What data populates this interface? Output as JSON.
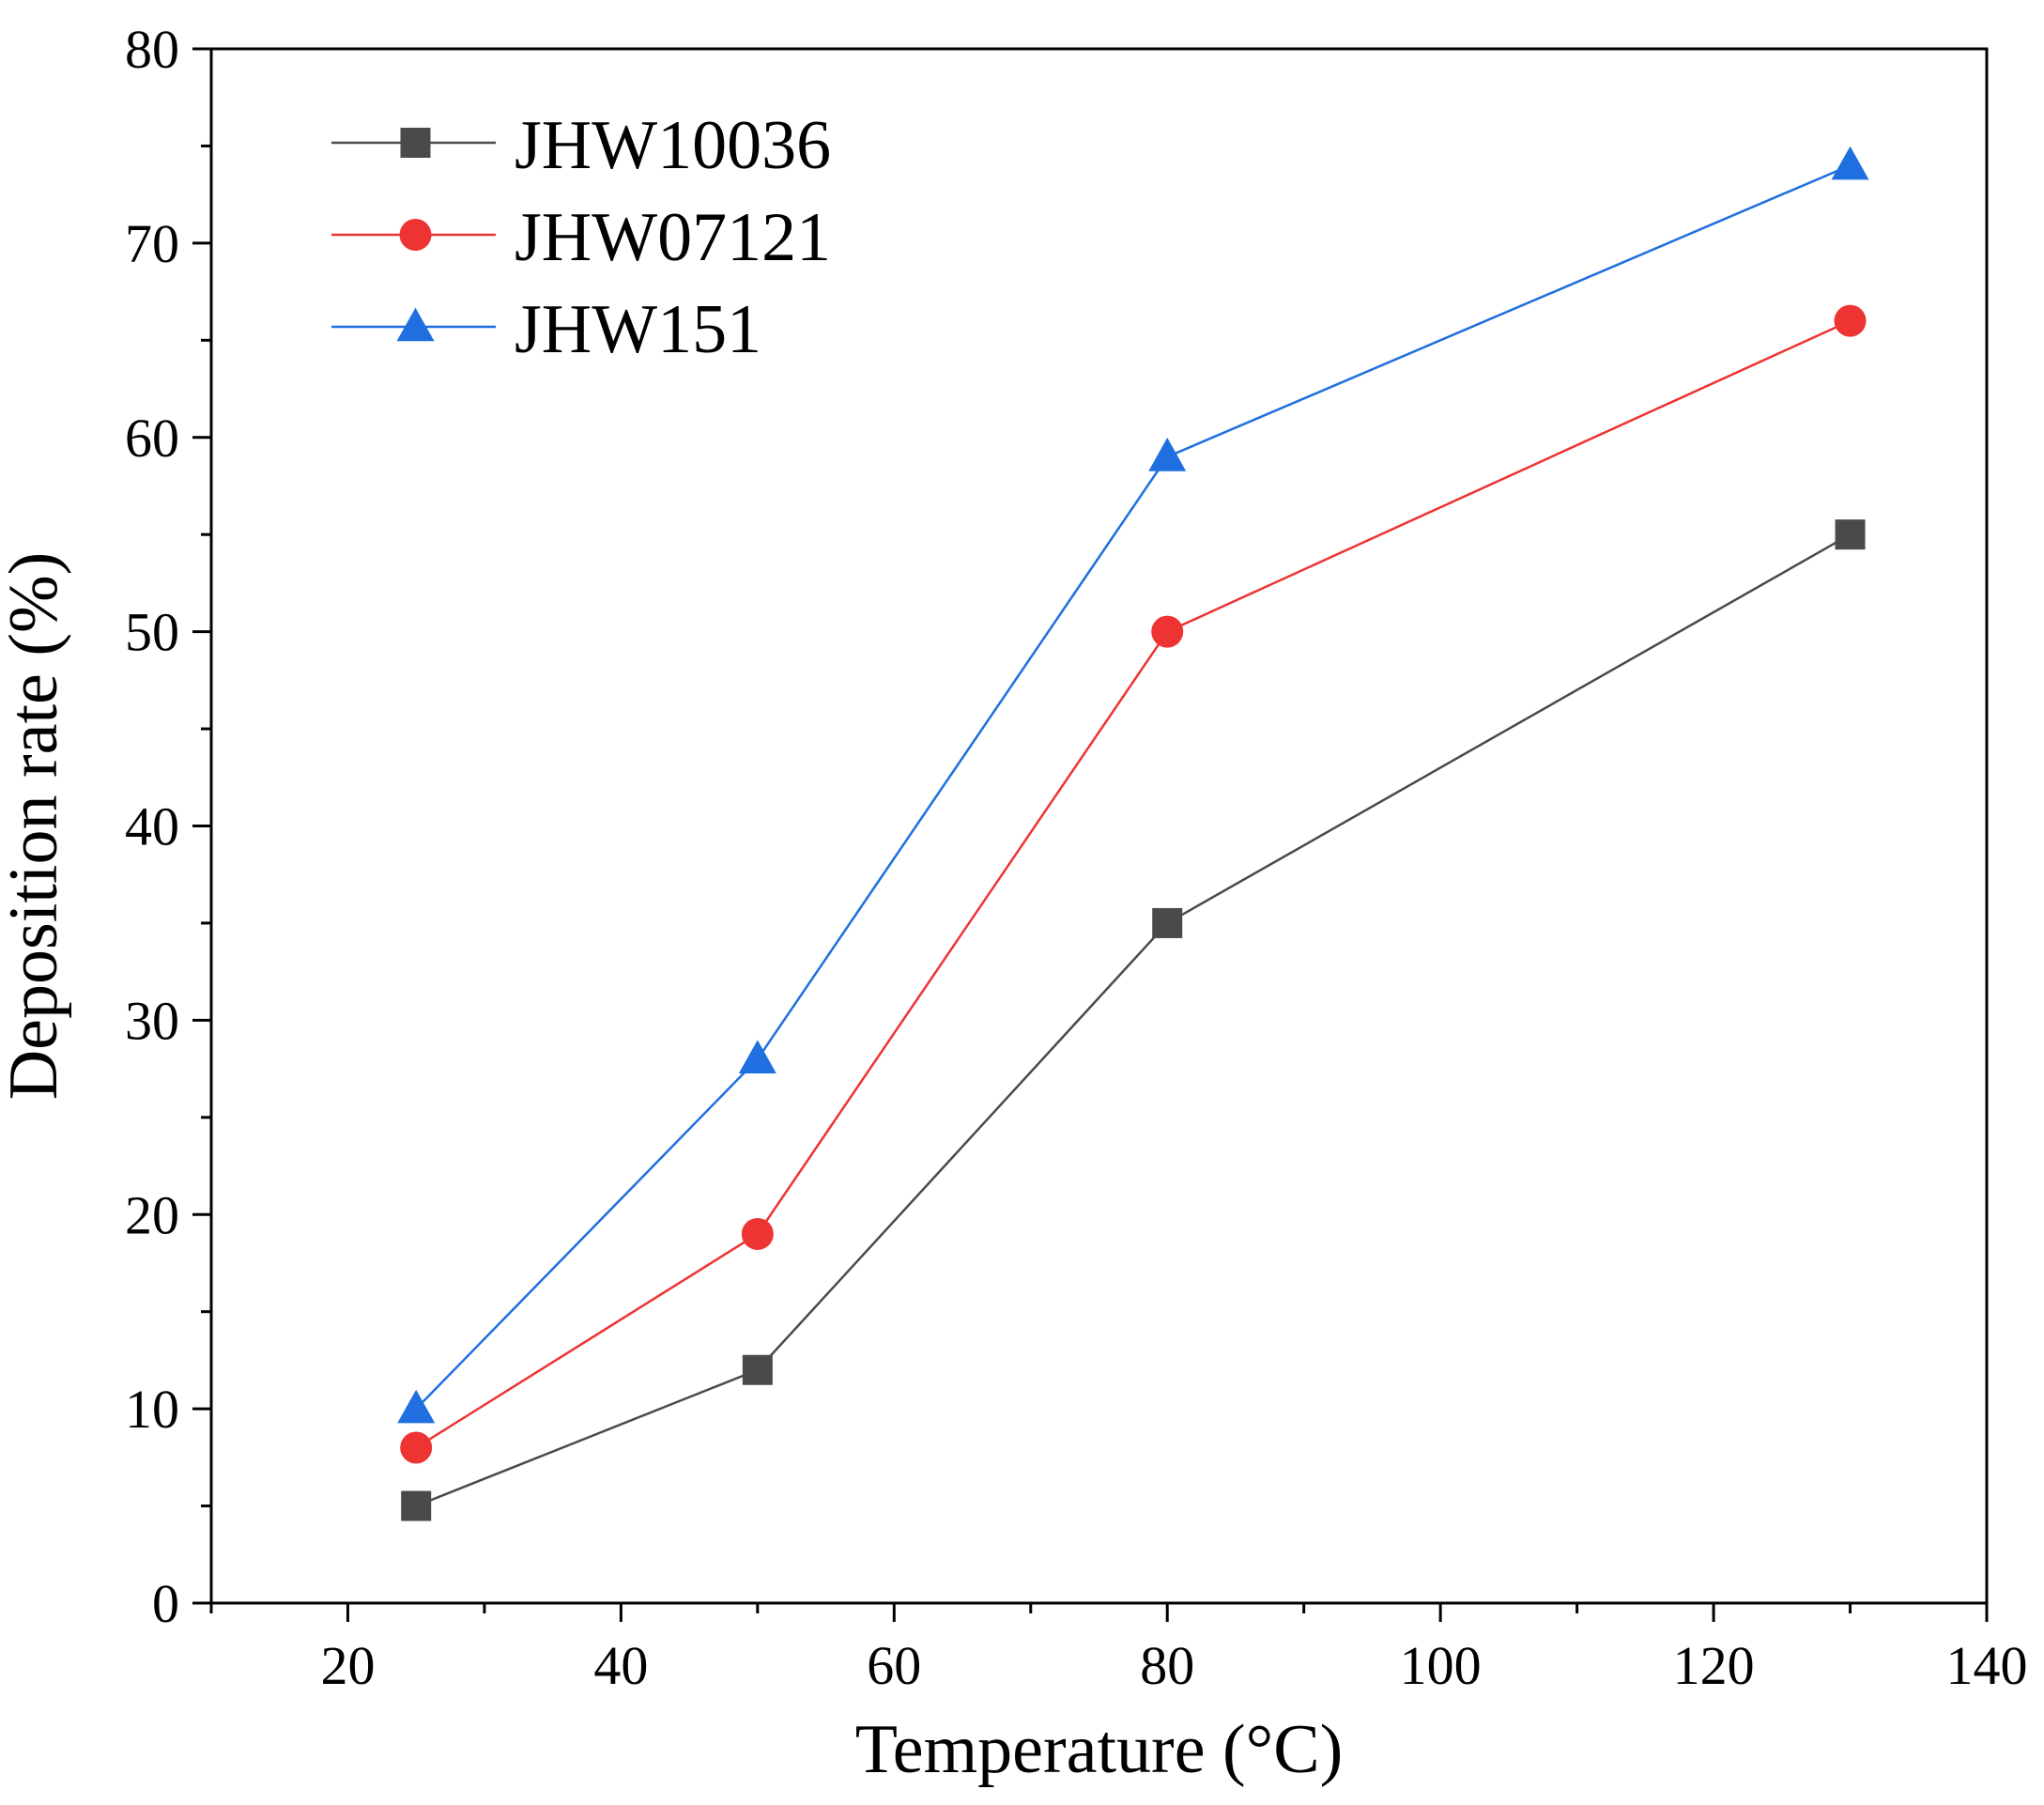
{
  "chart_data": {
    "type": "line",
    "title": "",
    "xlabel": "Temperature (°C)",
    "ylabel": "Deposition rate (%)",
    "xlim": [
      10,
      140
    ],
    "ylim": [
      0,
      80
    ],
    "x_major_ticks": [
      20,
      40,
      60,
      80,
      100,
      120,
      140
    ],
    "x_tick_labels": [
      "20",
      "40",
      "60",
      "80",
      "100",
      "120",
      "140"
    ],
    "y_major_ticks": [
      0,
      10,
      20,
      30,
      40,
      50,
      60,
      70,
      80
    ],
    "y_tick_labels": [
      "0",
      "10",
      "20",
      "30",
      "40",
      "50",
      "60",
      "70",
      "80"
    ],
    "grid": false,
    "legend_position": "top-left",
    "x": [
      25,
      50,
      80,
      130
    ],
    "series": [
      {
        "name": "JHW10036",
        "marker": "square",
        "color": "#4a4a4a",
        "values": [
          5,
          12,
          35,
          55
        ]
      },
      {
        "name": "JHW07121",
        "marker": "circle",
        "color": "#ee3333",
        "values": [
          8,
          19,
          50,
          66
        ]
      },
      {
        "name": "JHW151",
        "marker": "triangle",
        "color": "#1f6fe0",
        "values": [
          10,
          28,
          59,
          74
        ]
      }
    ]
  }
}
